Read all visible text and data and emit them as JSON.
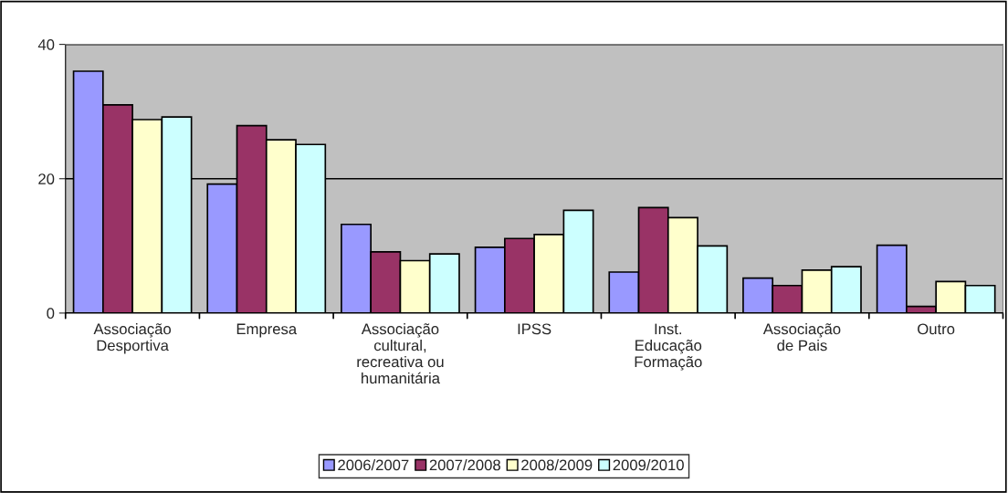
{
  "chart_data": {
    "type": "bar",
    "categories": [
      "Associação\nDesportiva",
      "Empresa",
      "Associação\ncultural,\nrecreativa ou\nhumanitária",
      "IPSS",
      "Inst.\nEducação\nFormação",
      "Associação\nde Pais",
      "Outro"
    ],
    "series": [
      {
        "name": "2006/2007",
        "color": "#9999ff",
        "values": [
          36.0,
          19.2,
          13.2,
          9.8,
          6.1,
          5.2,
          10.1
        ]
      },
      {
        "name": "2007/2008",
        "color": "#993366",
        "values": [
          31.0,
          27.9,
          9.1,
          11.1,
          15.7,
          4.1,
          1.0
        ]
      },
      {
        "name": "2008/2009",
        "color": "#ffffcc",
        "values": [
          28.8,
          25.8,
          7.8,
          11.7,
          14.2,
          6.4,
          4.7
        ]
      },
      {
        "name": "2009/2010",
        "color": "#ccffff",
        "values": [
          29.2,
          25.1,
          8.8,
          15.3,
          10.0,
          6.9,
          4.1
        ]
      }
    ],
    "ylim": [
      0,
      40
    ],
    "yticks": [
      0,
      20,
      40
    ],
    "grid": "y",
    "legend": "bottom"
  }
}
